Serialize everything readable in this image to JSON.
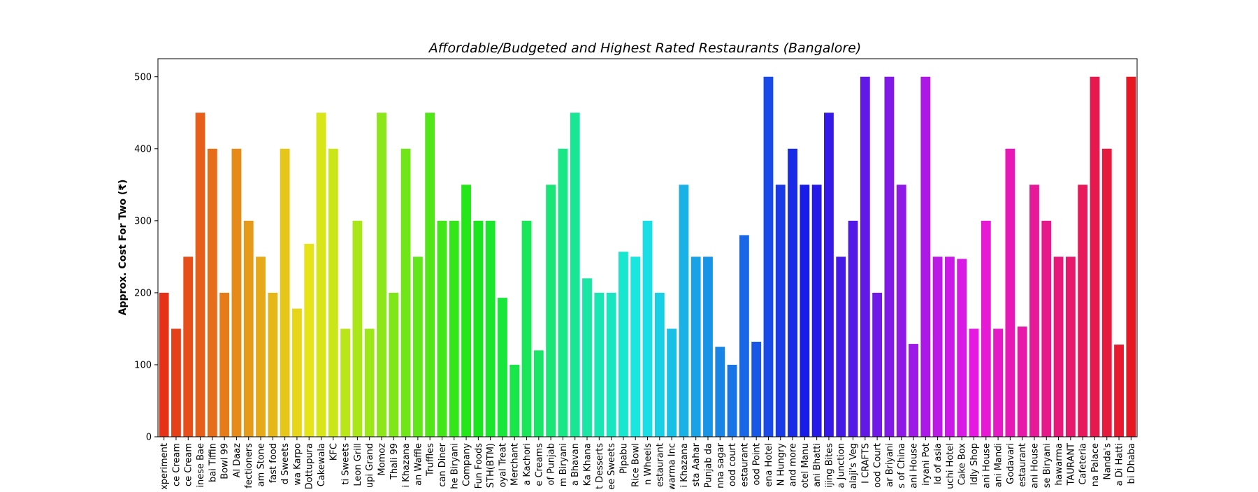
{
  "chart_data": {
    "type": "bar",
    "title": "Affordable/Budgeted and Highest Rated Restaurants (Bangalore)",
    "ylabel": "Approx. Cost For Two (₹)",
    "xlabel": "",
    "ylim": [
      0,
      525
    ],
    "yticks": [
      0,
      100,
      200,
      300,
      400,
      500
    ],
    "grid": false,
    "palette": "hue-spectrum (red → yellow → green → cyan → blue → purple → magenta → crimson)",
    "categories": [
      "xperiment",
      "ce Cream",
      "ce Cream",
      "inese Bae",
      "bai Tiffin",
      "Bowl 99",
      "Al Daaz",
      "fectioners",
      "am Stone",
      "fast food",
      "d Sweets",
      "wa Karpo",
      "Dottupura",
      "Cakewala",
      "KFC",
      "ti Sweets",
      "Leon Grill",
      "upi Grand",
      "Momoz",
      "Thali 99",
      "i Khazana",
      "an Waffle",
      "Truffles",
      "can Diner",
      "he Biryani",
      "Company",
      "Fun Foods",
      "STH(BTM)",
      "oyal Treat",
      "Merchant",
      "a Kachori",
      "e Creams",
      "of Punjab",
      "m Biryani",
      "a Bhavan",
      "Ka Khana",
      "t Desserts",
      "ee Sweets",
      "Pipabu",
      "Rice Bowl",
      "n Wheels",
      "estaurant",
      "warma Inc",
      "i Khazana",
      "sta Aahar",
      "Punjab da",
      "nna sagar",
      "ood court",
      "estaurant",
      "ood Point",
      "ena Hotel",
      "N Hungry",
      "and more",
      "otel Manu",
      "ani Bhatti",
      "ijing Bites",
      "a Junction",
      "alaji's Veg",
      "I CRAFTS",
      "ood Court",
      "ar Briyani",
      "s of China",
      "ani House",
      "iryani Pot",
      "ld of asia",
      "uchi Hotel",
      "Cake Box",
      "Idly Shop",
      "ani House",
      "ani Mandi",
      "Godavari",
      "estaurant",
      "ani House",
      "se Biryani",
      "hawarma",
      "TAURANT",
      "Cafeteria",
      "na Palace",
      "Nanda's",
      "a Di Hatti",
      "bi Dhaba"
    ],
    "values": [
      200,
      150,
      250,
      450,
      400,
      200,
      400,
      300,
      250,
      200,
      400,
      178,
      268,
      450,
      400,
      150,
      300,
      150,
      450,
      200,
      400,
      250,
      450,
      300,
      300,
      350,
      300,
      300,
      193,
      100,
      300,
      120,
      350,
      400,
      450,
      220,
      200,
      200,
      257,
      250,
      300,
      200,
      150,
      350,
      250,
      250,
      125,
      100,
      280,
      132,
      500,
      350,
      400,
      350,
      350,
      450,
      250,
      300,
      500,
      200,
      500,
      350,
      129,
      500,
      250,
      250,
      247,
      150,
      300,
      150,
      400,
      153,
      350,
      300,
      250,
      250,
      350,
      500,
      400,
      128,
      500
    ]
  }
}
